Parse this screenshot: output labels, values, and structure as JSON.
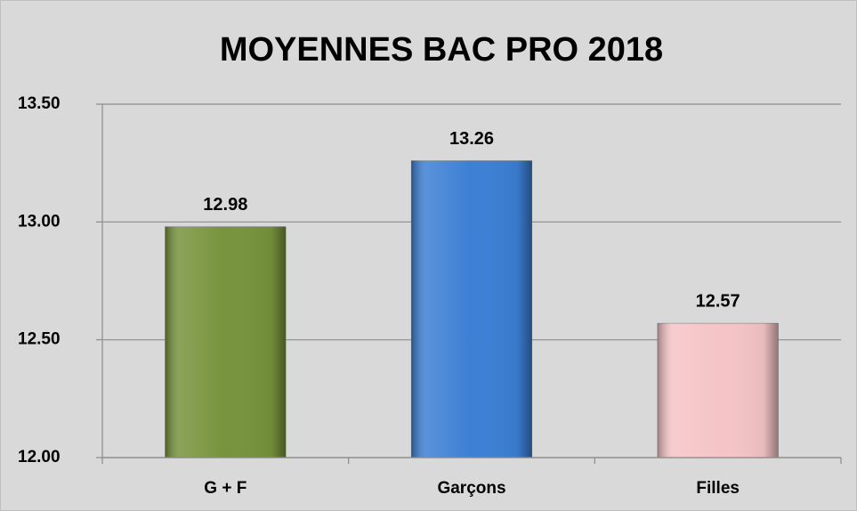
{
  "chart_data": {
    "type": "bar",
    "title": "MOYENNES BAC  PRO 2018",
    "categories": [
      "G + F",
      "Garçons",
      "Filles"
    ],
    "values": [
      12.98,
      13.26,
      12.57
    ],
    "colors": [
      "#77933c",
      "#3c7fd4",
      "#f5c4c6"
    ],
    "ylim": [
      12,
      13.5
    ],
    "yticks": [
      {
        "value": 12,
        "label": "12.00"
      },
      {
        "value": 12.5,
        "label": "12.50"
      },
      {
        "value": 13,
        "label": "13.00"
      },
      {
        "value": 13.5,
        "label": "13.50"
      }
    ],
    "grid": true
  }
}
